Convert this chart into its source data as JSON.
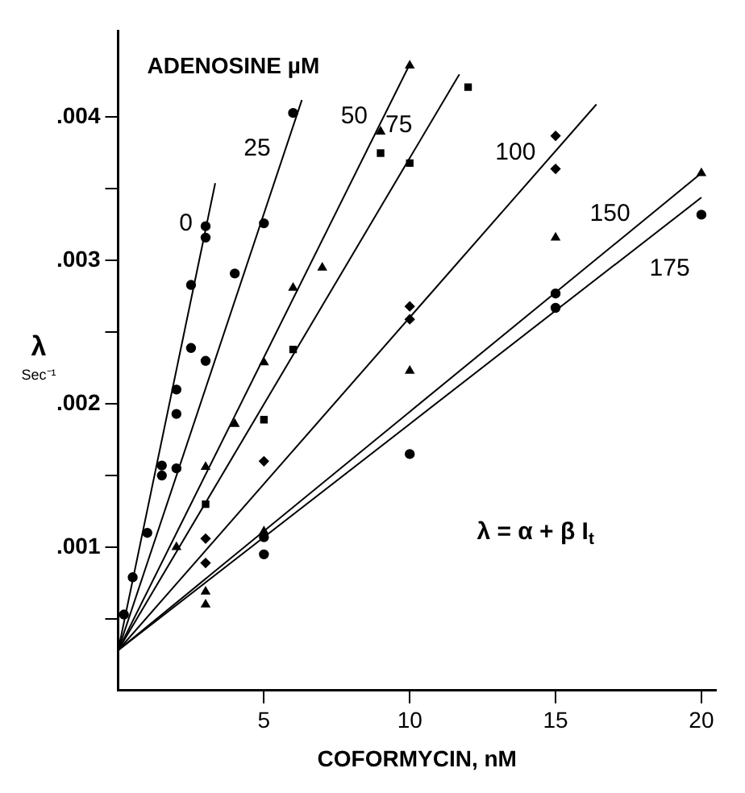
{
  "chart_data": {
    "type": "scatter",
    "legend_title": "ADENOSINE µM",
    "xlabel": "COFORMYCIN, nM",
    "ylabel": "λ Sec⁻¹",
    "annotations": [
      "λ = α + β I$_{t}$"
    ],
    "xlim": [
      0,
      20.5
    ],
    "ylim": [
      0,
      0.0046
    ],
    "xticks": [
      5,
      10,
      15,
      20
    ],
    "yticks": [
      {
        "value": 0.0005,
        "label": null
      },
      {
        "value": 0.001,
        "label": ".001"
      },
      {
        "value": 0.0015,
        "label": null
      },
      {
        "value": 0.002,
        "label": ".002"
      },
      {
        "value": 0.0025,
        "label": null
      },
      {
        "value": 0.003,
        "label": ".003"
      },
      {
        "value": 0.0035,
        "label": null
      },
      {
        "value": 0.004,
        "label": ".004"
      }
    ],
    "grid": false,
    "legend": false,
    "series": [
      {
        "type": "scatter",
        "marker": "circle",
        "color": "#000000",
        "x": [
          0.5,
          1,
          1.5,
          1.5,
          2,
          2,
          2.5,
          2.5,
          3,
          3
        ],
        "values": [
          0.00079,
          0.0011,
          0.00157,
          0.0015,
          0.00193,
          0.0021,
          0.00239,
          0.00283,
          0.00316,
          0.00324
        ]
      },
      {
        "type": "line",
        "name": "0",
        "marker": "none",
        "color": "#000000",
        "x": [
          0,
          3.33
        ],
        "values": [
          0.00028,
          0.00354
        ]
      },
      {
        "type": "scatter",
        "marker": "circle",
        "color": "#000000",
        "x": [
          0.2,
          2,
          3,
          4,
          5,
          6
        ],
        "values": [
          0.00053,
          0.00155,
          0.0023,
          0.00291,
          0.00326,
          0.00403
        ]
      },
      {
        "type": "line",
        "name": "25",
        "marker": "none",
        "color": "#000000",
        "x": [
          0,
          6.3
        ],
        "values": [
          0.00028,
          0.00412
        ]
      },
      {
        "type": "scatter",
        "marker": "triangle",
        "color": "#000000",
        "x": [
          2,
          3,
          4,
          5,
          6,
          7,
          9,
          10
        ],
        "values": [
          0.001,
          0.00156,
          0.00186,
          0.00229,
          0.00281,
          0.00295,
          0.0039,
          0.00436
        ]
      },
      {
        "type": "line",
        "name": "50",
        "marker": "none",
        "color": "#000000",
        "x": [
          0,
          10
        ],
        "values": [
          0.00028,
          0.00437
        ]
      },
      {
        "type": "scatter",
        "marker": "square",
        "color": "#000000",
        "x": [
          3,
          5,
          6,
          9,
          10,
          12
        ],
        "values": [
          0.0013,
          0.00189,
          0.00238,
          0.00375,
          0.00368,
          0.00421
        ]
      },
      {
        "type": "line",
        "name": "75",
        "marker": "none",
        "color": "#000000",
        "x": [
          0,
          11.7
        ],
        "values": [
          0.00028,
          0.0043
        ]
      },
      {
        "type": "scatter",
        "marker": "diamond",
        "color": "#000000",
        "x": [
          3,
          3,
          5,
          10,
          10,
          15,
          15
        ],
        "values": [
          0.00089,
          0.00106,
          0.0016,
          0.00259,
          0.00268,
          0.00364,
          0.00387
        ]
      },
      {
        "type": "line",
        "name": "100",
        "marker": "none",
        "color": "#000000",
        "x": [
          0,
          16.4
        ],
        "values": [
          0.00028,
          0.00409
        ]
      },
      {
        "type": "scatter",
        "marker": "triangle",
        "color": "#000000",
        "x": [
          3,
          3,
          5,
          10,
          15,
          20
        ],
        "values": [
          0.0006,
          0.00069,
          0.00111,
          0.00223,
          0.00316,
          0.00361
        ]
      },
      {
        "type": "line",
        "name": "150",
        "marker": "none",
        "color": "#000000",
        "x": [
          0,
          20
        ],
        "values": [
          0.00028,
          0.00361
        ]
      },
      {
        "type": "scatter",
        "marker": "circle",
        "color": "#000000",
        "x": [
          5,
          5,
          10,
          15,
          15,
          20
        ],
        "values": [
          0.00095,
          0.00107,
          0.00165,
          0.00267,
          0.00277,
          0.00332
        ]
      },
      {
        "type": "line",
        "name": "175",
        "marker": "none",
        "color": "#000000",
        "x": [
          0,
          20
        ],
        "values": [
          0.00028,
          0.00344
        ]
      }
    ]
  }
}
